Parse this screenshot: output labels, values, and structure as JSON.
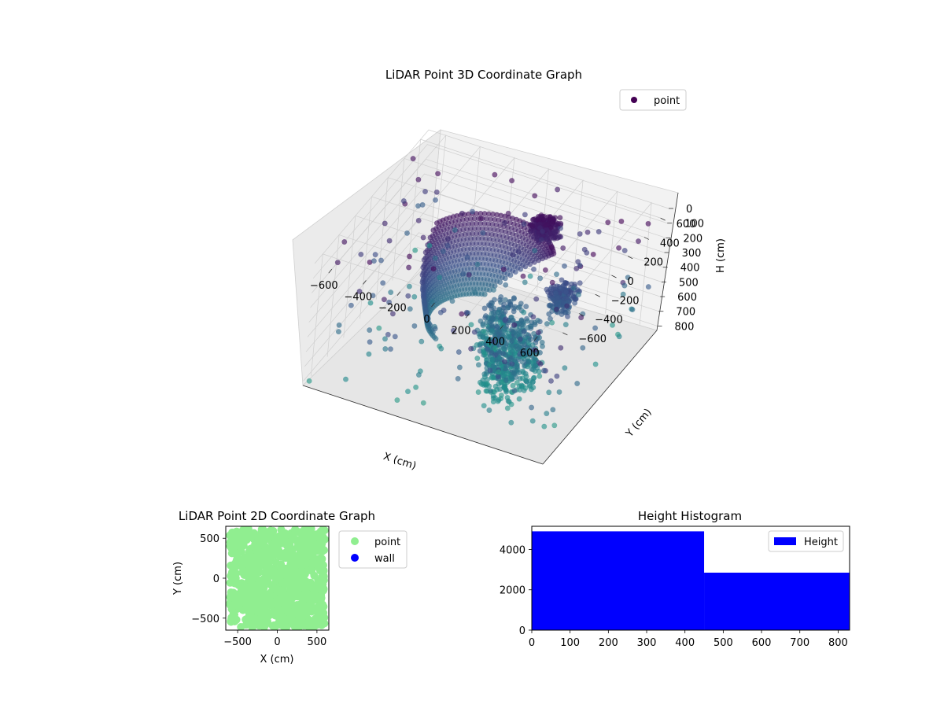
{
  "chart_data": [
    {
      "type": "scatter",
      "projection": "3d",
      "title": "LiDAR Point 3D Coordinate Graph",
      "xlabel": "X (cm)",
      "ylabel": "Y (cm)",
      "zlabel": "H (cm)",
      "xlim": [
        -700,
        700
      ],
      "ylim": [
        -700,
        700
      ],
      "zlim": [
        0,
        830
      ],
      "z_inverted": true,
      "x_ticks": [
        "−600",
        "−400",
        "−200",
        "0",
        "200",
        "400",
        "600"
      ],
      "x_tick_values": [
        -600,
        -400,
        -200,
        0,
        200,
        400,
        600
      ],
      "y_ticks": [
        "−600",
        "−400",
        "−200",
        "0",
        "200",
        "400",
        "600"
      ],
      "y_tick_values": [
        -600,
        -400,
        -200,
        0,
        200,
        400,
        600
      ],
      "z_ticks": [
        "0",
        "100",
        "200",
        "300",
        "400",
        "500",
        "600",
        "700",
        "800"
      ],
      "z_tick_values": [
        0,
        100,
        200,
        300,
        400,
        500,
        600,
        700,
        800
      ],
      "grid": true,
      "colormap": "viridis",
      "legend": {
        "placement": "top-right",
        "entries": [
          {
            "label": "point",
            "color": "#440154"
          }
        ]
      },
      "series": [
        {
          "name": "point",
          "description": "curved wall band and scattered points, colored by height"
        }
      ]
    },
    {
      "type": "scatter",
      "title": "LiDAR Point 2D Coordinate Graph",
      "xlabel": "X (cm)",
      "ylabel": "Y (cm)",
      "xlim": [
        -650,
        650
      ],
      "ylim": [
        -650,
        650
      ],
      "x_ticks": [
        "−500",
        "0",
        "500"
      ],
      "x_tick_values": [
        -500,
        0,
        500
      ],
      "y_ticks": [
        "−500",
        "0",
        "500"
      ],
      "y_tick_values": [
        -500,
        0,
        500
      ],
      "legend": {
        "placement": "outside-right",
        "entries": [
          {
            "label": "point",
            "color": "#90ee90"
          },
          {
            "label": "wall",
            "color": "#0000ff"
          }
        ]
      },
      "series": [
        {
          "name": "point",
          "color": "#90ee90",
          "extent_x": [
            -650,
            650
          ],
          "extent_y": [
            -650,
            650
          ]
        },
        {
          "name": "wall",
          "color": "#0000ff",
          "values": []
        }
      ]
    },
    {
      "type": "bar",
      "subtype": "histogram",
      "title": "Height Histogram",
      "xlabel": "",
      "ylabel": "",
      "bins": [
        {
          "from": 0,
          "to": 450,
          "count": 4900
        },
        {
          "from": 450,
          "to": 830,
          "count": 2850
        }
      ],
      "xlim": [
        0,
        830
      ],
      "ylim": [
        0,
        5150
      ],
      "x_ticks": [
        "0",
        "100",
        "200",
        "300",
        "400",
        "500",
        "600",
        "700",
        "800"
      ],
      "x_tick_values": [
        0,
        100,
        200,
        300,
        400,
        500,
        600,
        700,
        800
      ],
      "y_ticks": [
        "0",
        "2000",
        "4000"
      ],
      "y_tick_values": [
        0,
        2000,
        4000
      ],
      "legend": {
        "placement": "top-right",
        "entries": [
          {
            "label": "Height",
            "color": "#0000ff"
          }
        ]
      },
      "color": "#0000ff"
    }
  ]
}
